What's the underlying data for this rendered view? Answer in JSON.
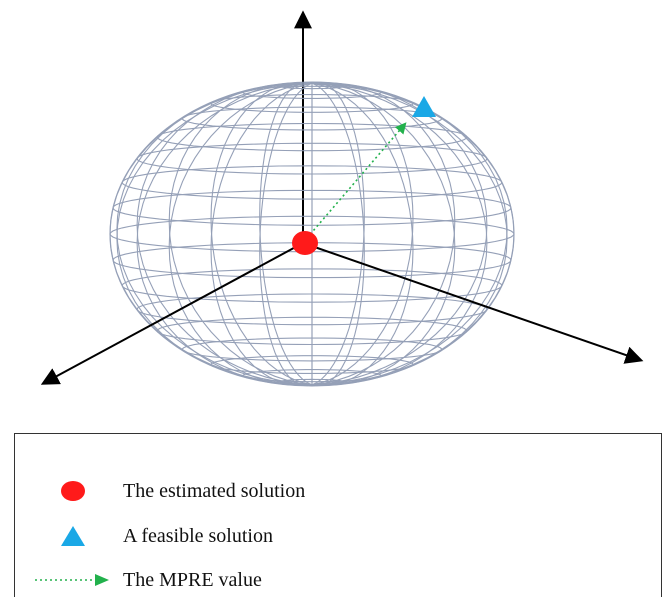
{
  "diagram": {
    "colors": {
      "mesh": "#8a96b0",
      "axis": "#000000",
      "estimated": "#ff1a1a",
      "feasible": "#1aa8e6",
      "mpre": "#22b14c"
    },
    "icons": {
      "estimated": "red-circle-icon",
      "feasible": "blue-triangle-icon",
      "mpre": "green-dotted-arrow-icon"
    }
  },
  "legend": {
    "items": [
      {
        "label": "The estimated solution"
      },
      {
        "label": "A feasible solution"
      },
      {
        "label": "The MPRE value"
      }
    ]
  }
}
